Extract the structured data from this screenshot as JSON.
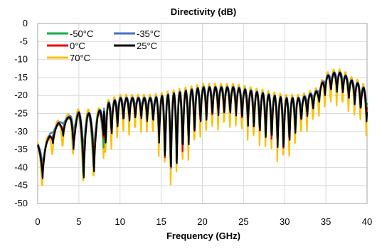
{
  "chart_data": {
    "type": "line",
    "title": "Directivity (dB)",
    "xlabel": "Frequency  (GHz)",
    "ylabel": "",
    "xlim": [
      0,
      40
    ],
    "ylim": [
      -50,
      0
    ],
    "xticks": [
      "0",
      "5",
      "10",
      "15",
      "20",
      "25",
      "30",
      "35",
      "40"
    ],
    "yticks": [
      "0",
      "-5",
      "-10",
      "-15",
      "-20",
      "-25",
      "-30",
      "-35",
      "-40",
      "-45",
      "-50"
    ],
    "grid": true,
    "legend_position": "top-left",
    "series": [
      {
        "name": "-50°C",
        "color": "#1aa84c"
      },
      {
        "name": "-35°C",
        "color": "#4472c4"
      },
      {
        "name": "0°C",
        "color": "#e8000b"
      },
      {
        "name": "25°C",
        "color": "#000000"
      },
      {
        "name": "70°C",
        "color": "#ffc000"
      }
    ],
    "envelope": {
      "x": [
        0,
        0.6,
        1.5,
        2.5,
        4,
        5,
        6,
        7,
        8,
        10,
        12,
        14,
        16,
        18,
        20,
        22,
        24,
        26,
        28,
        30,
        32,
        34,
        35,
        36,
        37,
        38,
        39,
        40
      ],
      "peak": [
        -34,
        -36,
        -31,
        -28,
        -26,
        -25,
        -25,
        -26,
        -23,
        -21,
        -21,
        -21,
        -20,
        -19,
        -18,
        -18,
        -18,
        -19,
        -20,
        -21,
        -21,
        -19,
        -15,
        -14,
        -14,
        -16,
        -17,
        -19
      ],
      "dip": [
        -40,
        -43,
        -34,
        -32,
        -30,
        -44,
        -42,
        -41,
        -36,
        -28,
        -27,
        -28,
        -44,
        -36,
        -28,
        -26,
        -26,
        -30,
        -33,
        -37,
        -28,
        -23,
        -20,
        -19,
        -20,
        -22,
        -24,
        -28
      ]
    }
  }
}
